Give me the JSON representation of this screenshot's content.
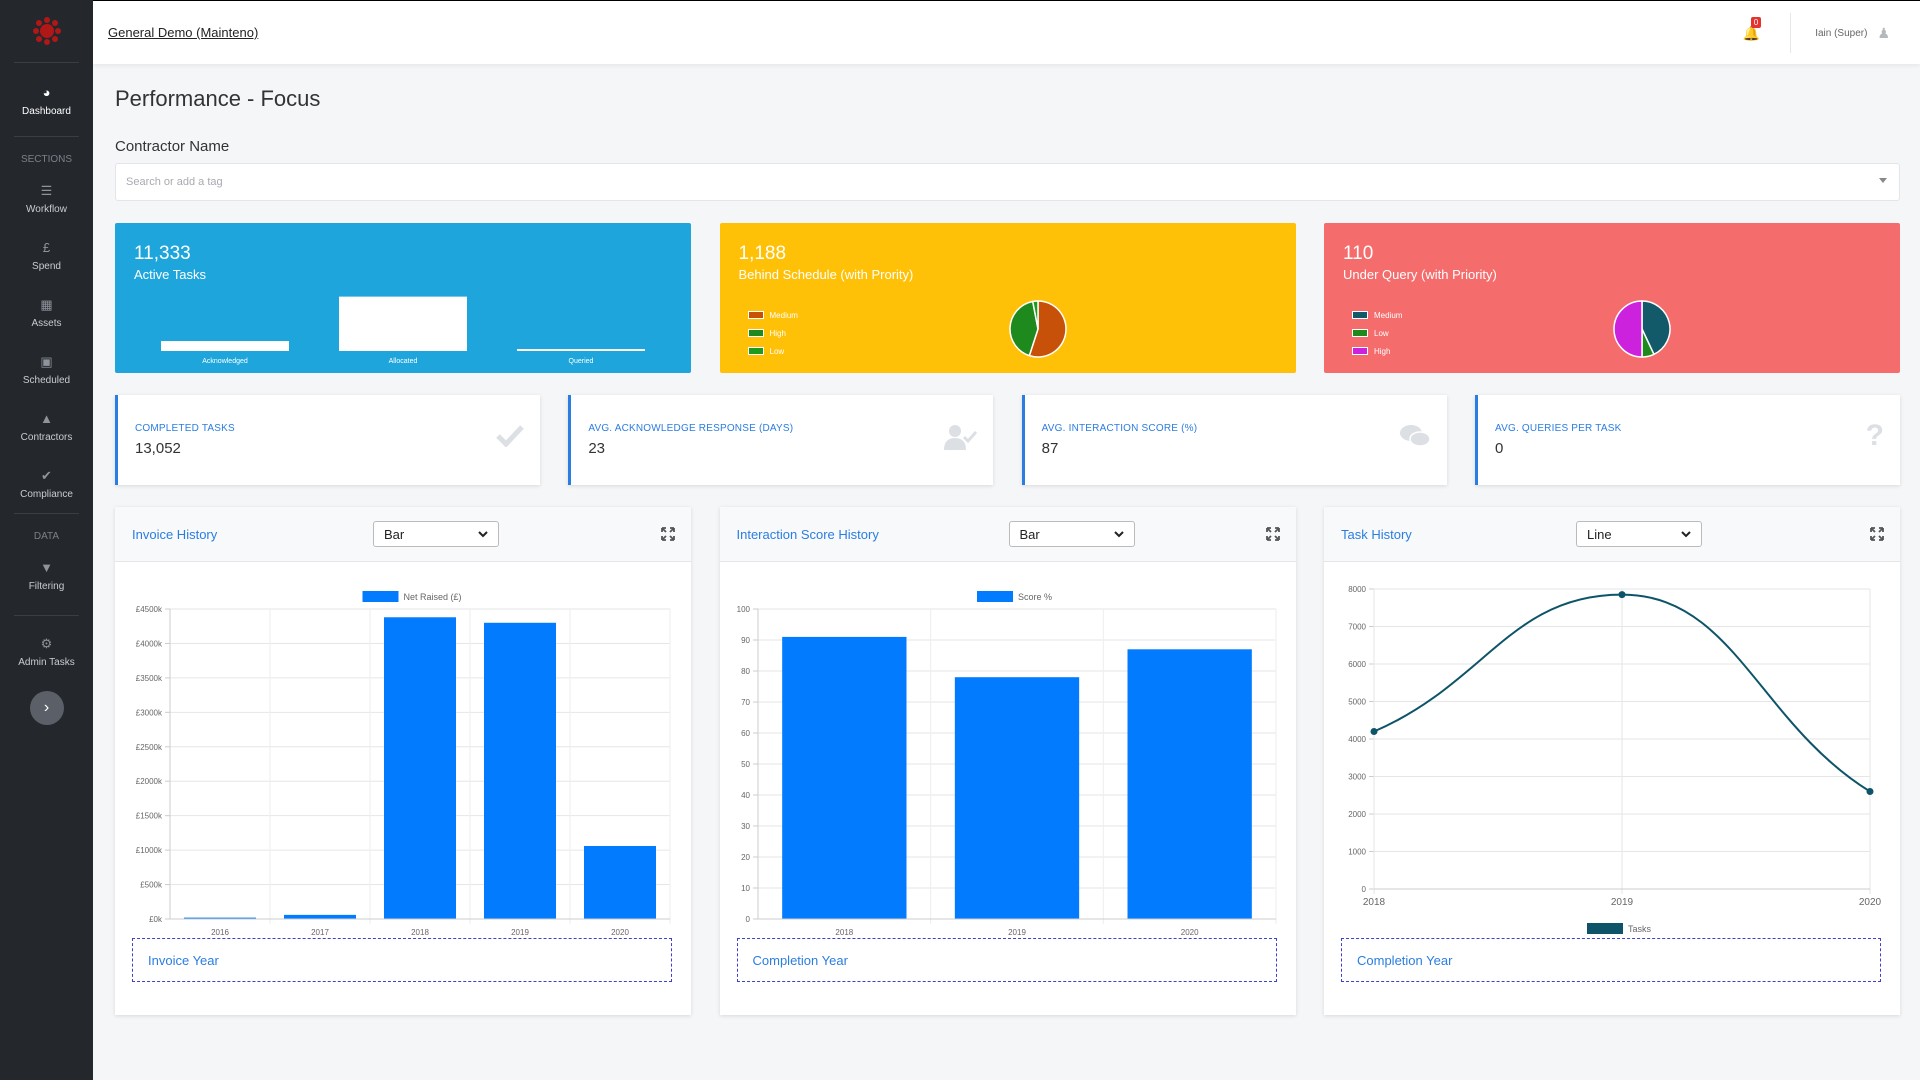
{
  "app": {
    "org_link": "General Demo (Mainteno)"
  },
  "topbar": {
    "notifications_count": "0",
    "user": "Iain (Super)"
  },
  "sidebar": {
    "items": [
      {
        "label": "Dashboard",
        "icon": "dashboard-icon"
      },
      {
        "label": "Workflow",
        "icon": "list-icon"
      },
      {
        "label": "Spend",
        "icon": "pound-icon"
      },
      {
        "label": "Assets",
        "icon": "grid-icon"
      },
      {
        "label": "Scheduled",
        "icon": "calendar-icon"
      },
      {
        "label": "Contractors",
        "icon": "contractors-icon"
      },
      {
        "label": "Compliance",
        "icon": "check-icon"
      },
      {
        "label": "Filtering",
        "icon": "filter-icon"
      },
      {
        "label": "Admin Tasks",
        "icon": "gear-icon"
      }
    ],
    "section_sections": "SECTIONS",
    "section_data": "DATA"
  },
  "page": {
    "title": "Performance - Focus",
    "contractor_label": "Contractor Name",
    "contractor_placeholder": "Search or add a tag"
  },
  "tiles": {
    "active": {
      "value": "11,333",
      "label": "Active Tasks",
      "bars": [
        {
          "label": "Acknowledged",
          "value": 550
        },
        {
          "label": "Allocated",
          "value": 3000
        },
        {
          "label": "Queried",
          "value": 110
        }
      ]
    },
    "behind": {
      "value": "1,188",
      "label": "Behind Schedule (with Prority)",
      "legend": [
        "Medium",
        "High",
        "Low"
      ],
      "colors": [
        "#c8510a",
        "#1e8a1e",
        "#1e9b1e"
      ],
      "slices": [
        0.55,
        0.42,
        0.03
      ]
    },
    "query": {
      "value": "110",
      "label": "Under Query (with Priority)",
      "legend": [
        "Medium",
        "Low",
        "High"
      ],
      "colors": [
        "#125a6a",
        "#1e8a1e",
        "#cc22dd"
      ],
      "slices": [
        0.43,
        0.07,
        0.5
      ]
    }
  },
  "stats": [
    {
      "label": "COMPLETED TASKS",
      "value": "13,052",
      "icon": "check-icon"
    },
    {
      "label": "AVG. ACKNOWLEDGE RESPONSE (DAYS)",
      "value": "23",
      "icon": "user-check-icon"
    },
    {
      "label": "AVG. INTERACTION SCORE (%)",
      "value": "87",
      "icon": "comments-icon"
    },
    {
      "label": "AVG. QUERIES PER TASK",
      "value": "0",
      "icon": "question-icon"
    }
  ],
  "cards": [
    {
      "title": "Invoice History",
      "select": "Bar",
      "year_label": "Invoice Year"
    },
    {
      "title": "Interaction Score History",
      "select": "Bar",
      "year_label": "Completion Year"
    },
    {
      "title": "Task History",
      "select": "Line",
      "year_label": "Completion Year"
    }
  ],
  "chart_data": [
    {
      "type": "bar",
      "categories": [
        "2016",
        "2017",
        "2018",
        "2019",
        "2020"
      ],
      "series": [
        {
          "name": "Net Raised (£)",
          "values": [
            20,
            60,
            4380,
            4300,
            1060
          ]
        }
      ],
      "yticks": [
        "£0k",
        "£500k",
        "£1000k",
        "£1500k",
        "£2000k",
        "£2500k",
        "£3000k",
        "£3500k",
        "£4000k",
        "£4500k"
      ],
      "ylim": [
        0,
        4500
      ],
      "color": "#037bff"
    },
    {
      "type": "bar",
      "categories": [
        "2018",
        "2019",
        "2020"
      ],
      "series": [
        {
          "name": "Score %",
          "values": [
            91,
            78,
            87
          ]
        }
      ],
      "yticks": [
        "0",
        "10",
        "20",
        "30",
        "40",
        "50",
        "60",
        "70",
        "80",
        "90",
        "100"
      ],
      "ylim": [
        0,
        100
      ],
      "color": "#037bff"
    },
    {
      "type": "line",
      "categories": [
        "2018",
        "2019",
        "2020"
      ],
      "series": [
        {
          "name": "Tasks",
          "values": [
            4200,
            7850,
            2600
          ]
        }
      ],
      "yticks": [
        "0",
        "1000",
        "2000",
        "3000",
        "4000",
        "5000",
        "6000",
        "7000",
        "8000"
      ],
      "ylim": [
        0,
        8000
      ],
      "color": "#0d5468"
    }
  ]
}
